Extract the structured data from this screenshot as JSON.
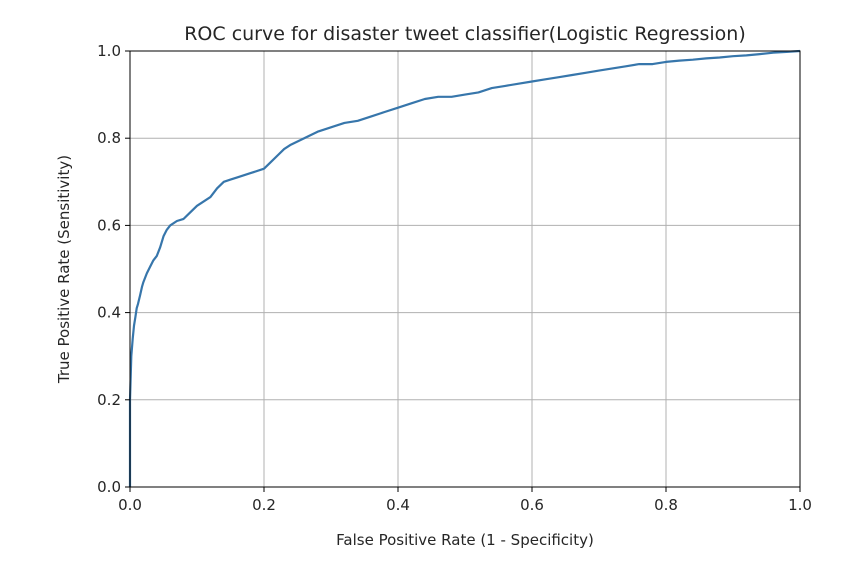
{
  "chart_data": {
    "type": "line",
    "title": "ROC curve for disaster tweet classifier(Logistic Regression)",
    "xlabel": "False Positive Rate (1 - Specificity)",
    "ylabel": "True Positive Rate (Sensitivity)",
    "xlim": [
      0.0,
      1.0
    ],
    "ylim": [
      0.0,
      1.0
    ],
    "grid": true,
    "x_ticks": [
      "0.0",
      "0.2",
      "0.4",
      "0.6",
      "0.8",
      "1.0"
    ],
    "y_ticks": [
      "0.0",
      "0.2",
      "0.4",
      "0.6",
      "0.8",
      "1.0"
    ],
    "series_color": "#3776ab",
    "series": [
      {
        "x": [
          0.0,
          0.0,
          0.002,
          0.004,
          0.006,
          0.008,
          0.01,
          0.012,
          0.015,
          0.018,
          0.02,
          0.025,
          0.03,
          0.035,
          0.04,
          0.045,
          0.05,
          0.055,
          0.06,
          0.07,
          0.08,
          0.09,
          0.1,
          0.11,
          0.12,
          0.13,
          0.14,
          0.15,
          0.16,
          0.18,
          0.2,
          0.21,
          0.22,
          0.23,
          0.24,
          0.26,
          0.28,
          0.3,
          0.32,
          0.34,
          0.36,
          0.38,
          0.4,
          0.42,
          0.44,
          0.46,
          0.48,
          0.5,
          0.52,
          0.54,
          0.56,
          0.58,
          0.6,
          0.62,
          0.64,
          0.66,
          0.68,
          0.7,
          0.72,
          0.74,
          0.76,
          0.78,
          0.8,
          0.82,
          0.84,
          0.86,
          0.88,
          0.9,
          0.92,
          0.94,
          0.96,
          0.98,
          1.0
        ],
        "y": [
          0.0,
          0.2,
          0.3,
          0.34,
          0.37,
          0.39,
          0.41,
          0.42,
          0.44,
          0.46,
          0.47,
          0.49,
          0.505,
          0.52,
          0.53,
          0.55,
          0.575,
          0.59,
          0.6,
          0.61,
          0.615,
          0.63,
          0.645,
          0.655,
          0.665,
          0.685,
          0.7,
          0.705,
          0.71,
          0.72,
          0.73,
          0.745,
          0.76,
          0.775,
          0.785,
          0.8,
          0.815,
          0.825,
          0.835,
          0.84,
          0.85,
          0.86,
          0.87,
          0.88,
          0.89,
          0.895,
          0.895,
          0.9,
          0.905,
          0.915,
          0.92,
          0.925,
          0.93,
          0.935,
          0.94,
          0.945,
          0.95,
          0.955,
          0.96,
          0.965,
          0.97,
          0.97,
          0.975,
          0.978,
          0.98,
          0.983,
          0.985,
          0.988,
          0.99,
          0.993,
          0.996,
          0.998,
          1.0
        ]
      }
    ]
  }
}
